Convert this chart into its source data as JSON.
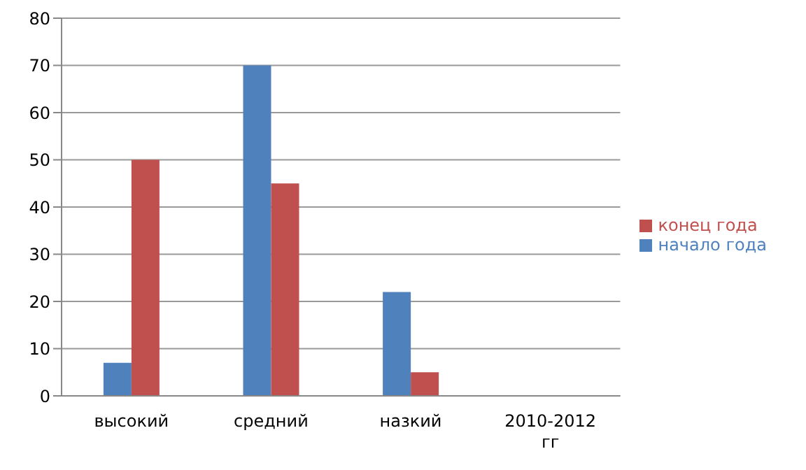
{
  "chart_data": {
    "type": "bar",
    "categories": [
      "высокий",
      "средний",
      "назкий",
      "2010-2012 гг"
    ],
    "series": [
      {
        "name": "начало года",
        "color": "#4f81bd",
        "values": [
          7,
          70,
          22,
          null
        ]
      },
      {
        "name": "конец года",
        "color": "#c0504d",
        "values": [
          50,
          45,
          5,
          null
        ]
      }
    ],
    "ylim": [
      0,
      80
    ],
    "yticks": [
      0,
      10,
      20,
      30,
      40,
      50,
      60,
      70,
      80
    ],
    "grid": "y",
    "legend": "right"
  }
}
